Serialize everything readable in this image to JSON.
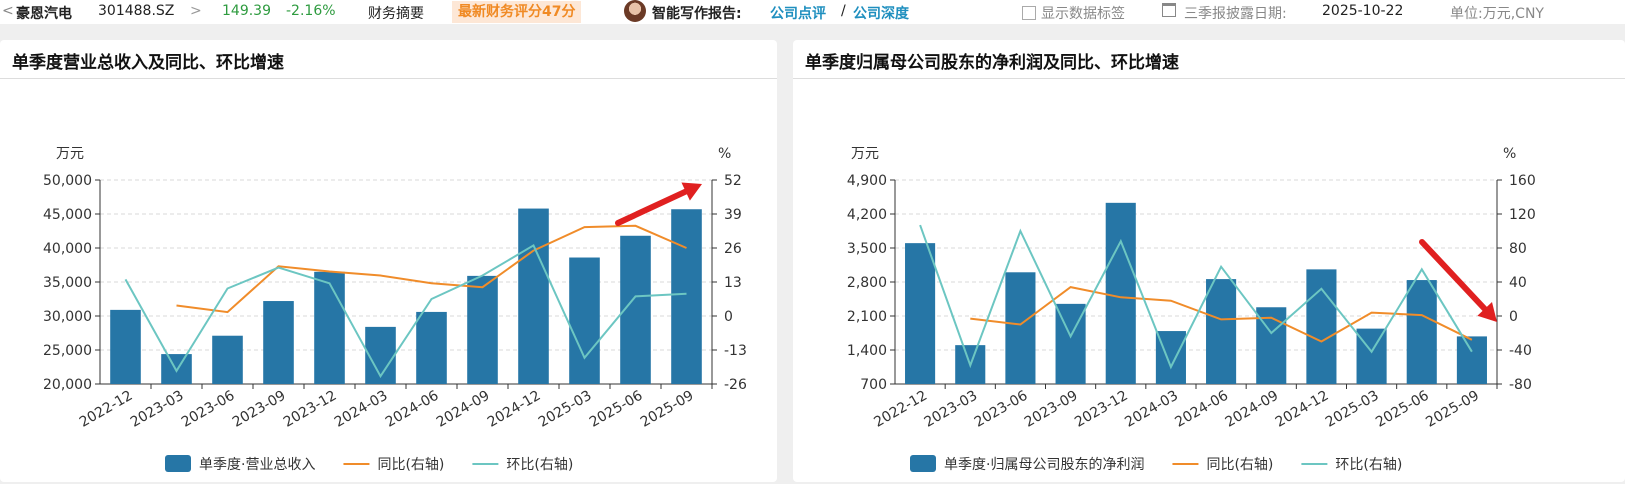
{
  "header": {
    "back_glyph": "<",
    "stock_name": "豪恩汽电",
    "stock_code": "301488.SZ",
    "chevron": ">",
    "price": "149.39",
    "change": "-2.16%",
    "finance_summary": "财务摘要",
    "score_badge": "最新财务评分47分",
    "report_label": "智能写作报告:",
    "link_review": "公司点评",
    "slash": "/",
    "link_depth": "公司深度",
    "show_labels": "显示数据标签",
    "disclosure_label": "三季报披露日期:",
    "disclosure_date": "2025-10-22",
    "unit": "单位:万元,CNY"
  },
  "colors": {
    "bar": "#2676a6",
    "yoy": "#f08c2a",
    "qoq": "#6cc6c2",
    "arrow": "#e02020",
    "grid": "#d8d8d8",
    "score_bg": "#fde7d6",
    "score_text": "#f08a24",
    "link": "#1f8fbf",
    "green": "#2e9b3f"
  },
  "chart_data": [
    {
      "type": "bar",
      "title": "单季度营业总收入及同比、环比增速",
      "left_unit": "万元",
      "right_unit": "%",
      "categories": [
        "2022-12",
        "2023-03",
        "2023-06",
        "2023-09",
        "2023-12",
        "2024-03",
        "2024-06",
        "2024-09",
        "2024-12",
        "2025-03",
        "2025-06",
        "2025-09"
      ],
      "y_left_ticks": [
        "50,000",
        "45,000",
        "40,000",
        "35,000",
        "30,000",
        "25,000",
        "20,000"
      ],
      "y_left_range": [
        20000,
        50000
      ],
      "y_right_ticks": [
        "52",
        "39",
        "26",
        "13",
        "0",
        "-13",
        "-26"
      ],
      "y_right_range": [
        -26,
        52
      ],
      "series": [
        {
          "name": "单季度·营业总收入",
          "kind": "bar",
          "axis": "left",
          "values": [
            30900,
            24400,
            27100,
            32200,
            36500,
            28400,
            30600,
            35900,
            45800,
            38600,
            41800,
            45700
          ]
        },
        {
          "name": "同比(右轴)",
          "kind": "line",
          "axis": "right",
          "values": [
            null,
            4,
            1.5,
            19,
            17,
            15.5,
            12.5,
            11,
            25,
            34,
            34.5,
            26
          ]
        },
        {
          "name": "环比(右轴)",
          "kind": "line",
          "axis": "right",
          "values": [
            14,
            -21,
            10.5,
            18.5,
            12.5,
            -23,
            6.5,
            15.5,
            27,
            -16,
            7.5,
            8.5
          ]
        }
      ],
      "annotation": {
        "type": "arrow",
        "direction": "up"
      },
      "legend": "bottom",
      "grid": true
    },
    {
      "type": "bar",
      "title": "单季度归属母公司股东的净利润及同比、环比增速",
      "left_unit": "万元",
      "right_unit": "%",
      "categories": [
        "2022-12",
        "2023-03",
        "2023-06",
        "2023-09",
        "2023-12",
        "2024-03",
        "2024-06",
        "2024-09",
        "2024-12",
        "2025-03",
        "2025-06",
        "2025-09"
      ],
      "y_left_ticks": [
        "4,900",
        "4,200",
        "3,500",
        "2,800",
        "2,100",
        "1,400",
        "700"
      ],
      "y_left_range": [
        700,
        4900
      ],
      "y_right_ticks": [
        "160",
        "120",
        "80",
        "40",
        "0",
        "-40",
        "-80"
      ],
      "y_right_range": [
        -80,
        160
      ],
      "series": [
        {
          "name": "单季度·归属母公司股东的净利润",
          "kind": "bar",
          "axis": "left",
          "values": [
            3600,
            1500,
            3000,
            2350,
            4430,
            1790,
            2860,
            2280,
            3060,
            1840,
            2840,
            1680
          ]
        },
        {
          "name": "同比(右轴)",
          "kind": "line",
          "axis": "right",
          "values": [
            null,
            -3,
            -10,
            34,
            22,
            18,
            -4,
            -2,
            -30,
            4,
            1,
            -28
          ]
        },
        {
          "name": "环比(右轴)",
          "kind": "line",
          "axis": "right",
          "values": [
            107,
            -58,
            100,
            -24,
            88,
            -60,
            58,
            -20,
            32,
            -42,
            55,
            -42
          ]
        }
      ],
      "annotation": {
        "type": "arrow",
        "direction": "down"
      },
      "legend": "bottom",
      "grid": true
    }
  ]
}
